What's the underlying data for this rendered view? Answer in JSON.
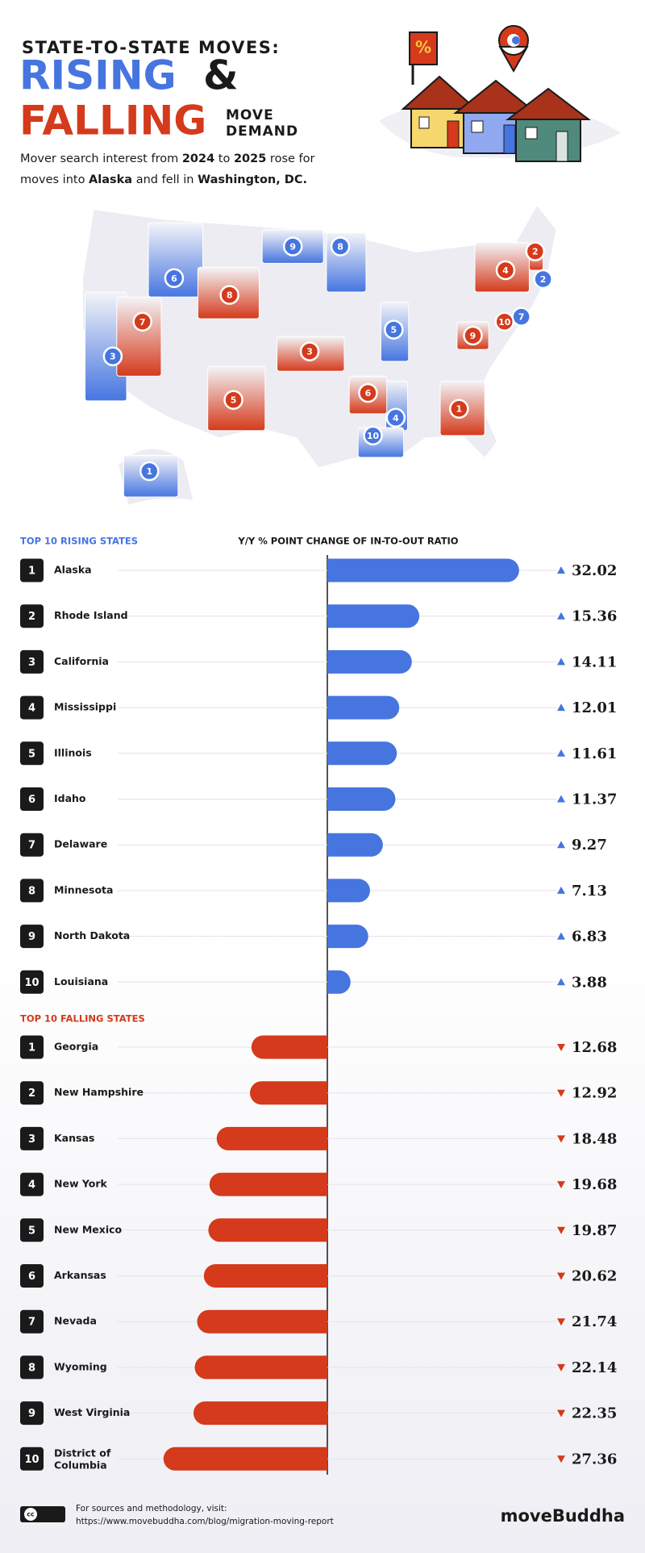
{
  "header": {
    "kicker": "STATE-TO-STATE MOVES:",
    "title_rising": "RISING",
    "amp": "&",
    "title_falling": "FALLING",
    "move": "MOVE",
    "demand": "DEMAND",
    "subtitle": [
      [
        {
          "text": "Mover search interest from ",
          "bold": false
        },
        {
          "text": "2024",
          "bold": true
        },
        {
          "text": " to ",
          "bold": false
        },
        {
          "text": "2025",
          "bold": true
        },
        {
          "text": " rose for",
          "bold": false
        }
      ],
      [
        {
          "text": "moves into ",
          "bold": false
        },
        {
          "text": "Alaska",
          "bold": true
        },
        {
          "text": " and fell in ",
          "bold": false
        },
        {
          "text": "Washington, DC.",
          "bold": true
        }
      ]
    ],
    "house_sign": "%"
  },
  "map": {
    "rising": [
      1,
      2,
      3,
      4,
      5,
      6,
      7,
      8,
      9,
      10
    ],
    "falling": [
      1,
      2,
      3,
      4,
      5,
      6,
      7,
      8,
      9,
      10
    ]
  },
  "chart_data": [
    {
      "type": "bar",
      "title": "TOP 10 RISING STATES",
      "axis_label": "Y/Y % POINT CHANGE OF IN-TO-OUT RATIO",
      "ranks": [
        1,
        2,
        3,
        4,
        5,
        6,
        7,
        8,
        9,
        10
      ],
      "categories": [
        "Alaska",
        "Rhode Island",
        "California",
        "Mississippi",
        "Illinois",
        "Idaho",
        "Delaware",
        "Minnesota",
        "North Dakota",
        "Louisiana"
      ],
      "values": [
        32.02,
        15.36,
        14.11,
        12.01,
        11.61,
        11.37,
        9.27,
        7.13,
        6.83,
        3.88
      ],
      "color": "#4675e0",
      "xlim": [
        -35,
        35
      ]
    },
    {
      "type": "bar",
      "title": "TOP 10 FALLING STATES",
      "ranks": [
        1,
        2,
        3,
        4,
        5,
        6,
        7,
        8,
        9,
        10
      ],
      "categories": [
        "Georgia",
        "New Hampshire",
        "Kansas",
        "New York",
        "New Mexico",
        "Arkansas",
        "Nevada",
        "Wyoming",
        "West Virginia",
        "District of Columbia"
      ],
      "values": [
        -12.68,
        -12.92,
        -18.48,
        -19.68,
        -19.87,
        -20.62,
        -21.74,
        -22.14,
        -22.35,
        -27.36
      ],
      "value_labels": [
        "12.68",
        "12.92",
        "18.48",
        "19.68",
        "19.87",
        "20.62",
        "21.74",
        "22.14",
        "22.35",
        "27.36"
      ],
      "color": "#d43a1b",
      "xlim": [
        -35,
        35
      ]
    }
  ],
  "footer": {
    "license": "cc",
    "note": "For sources and methodology, visit:",
    "url": "https://www.movebuddha.com/blog/migration-moving-report",
    "brand": "moveBuddha"
  }
}
